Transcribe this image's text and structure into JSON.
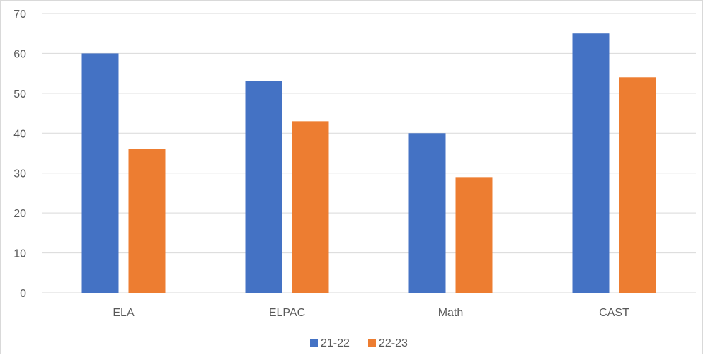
{
  "chart_data": {
    "type": "bar",
    "categories": [
      "ELA",
      "ELPAC",
      "Math",
      "CAST"
    ],
    "series": [
      {
        "name": "21-22",
        "values": [
          60,
          53,
          40,
          65
        ],
        "color": "#4472c4"
      },
      {
        "name": "22-23",
        "values": [
          36,
          43,
          29,
          54
        ],
        "color": "#ed7d31"
      }
    ],
    "yticks": [
      "0",
      "10",
      "20",
      "30",
      "40",
      "50",
      "60",
      "70"
    ],
    "ylim": [
      0,
      70
    ],
    "grid": true,
    "gridline_color": "#d9d9d9",
    "legend_position": "bottom"
  }
}
